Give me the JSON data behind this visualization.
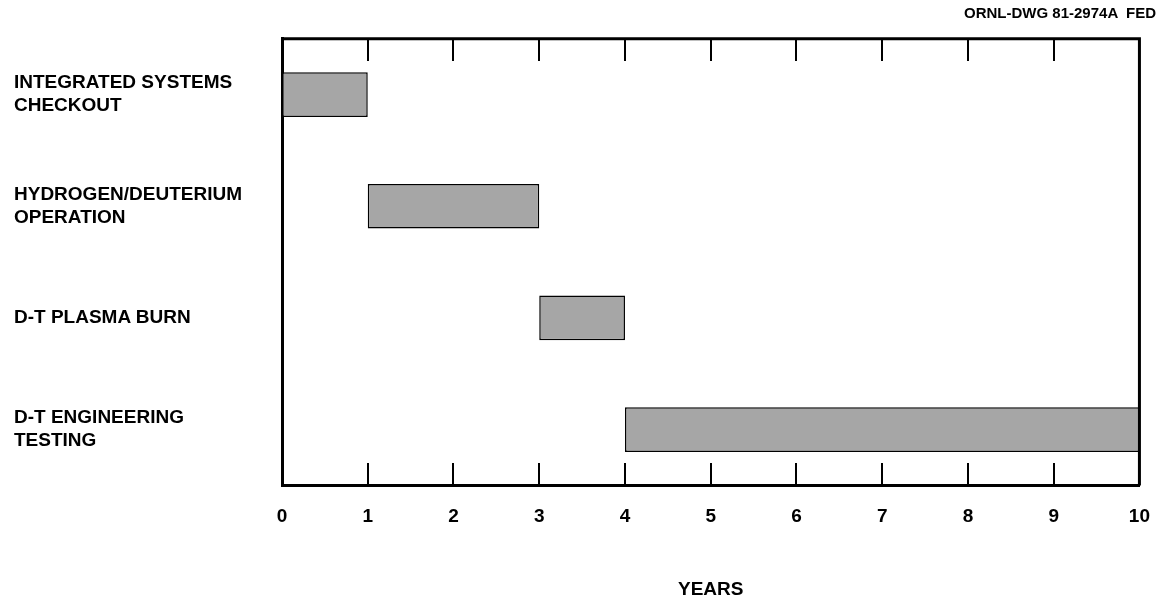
{
  "chart_data": {
    "type": "bar",
    "orientation": "horizontal",
    "categories": [
      "INTEGRATED SYSTEMS CHECKOUT",
      "HYDROGEN/DEUTERIUM OPERATION",
      "D-T PLASMA BURN",
      "D-T ENGINEERING TESTING"
    ],
    "base": [
      0,
      1,
      3,
      4
    ],
    "values": [
      1,
      2,
      1,
      6
    ],
    "color": "#a6a6a6",
    "xlabel": "YEARS",
    "xlim": [
      0,
      10
    ],
    "xticks": [
      0,
      1,
      2,
      3,
      4,
      5,
      6,
      7,
      8,
      9,
      10
    ],
    "grid": false,
    "legend": false,
    "annotations": [
      "ORNL-DWG 81-2974A  FED"
    ]
  }
}
